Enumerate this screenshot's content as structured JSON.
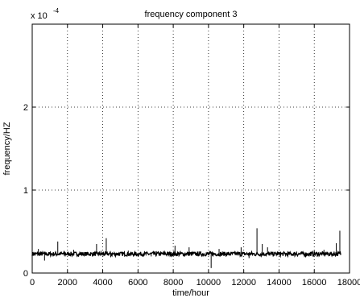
{
  "chart_data": {
    "type": "line",
    "title": "frequency component 3",
    "xlabel": "time/hour",
    "ylabel": "frequency/HZ",
    "y_multiplier": {
      "base": "x 10",
      "exponent": "-4"
    },
    "xlim": [
      0,
      18000
    ],
    "ylim": [
      0,
      3
    ],
    "xticks": [
      0,
      2000,
      4000,
      6000,
      8000,
      10000,
      12000,
      14000,
      16000,
      18000
    ],
    "xtick_labels": [
      "0",
      "2000",
      "4000",
      "6000",
      "8000",
      "10000",
      "12000",
      "14000",
      "16000",
      "18000"
    ],
    "yticks": [
      0,
      1,
      2
    ],
    "ytick_labels": [
      "0",
      "1",
      "2"
    ],
    "grid": true,
    "series": [
      {
        "color": "#000000",
        "baseline": 0.23,
        "x_range": [
          0,
          17500
        ],
        "spikes": [
          {
            "x": 350,
            "y": 0.29
          },
          {
            "x": 700,
            "y": 0.15
          },
          {
            "x": 1450,
            "y": 0.38
          },
          {
            "x": 2350,
            "y": 0.28
          },
          {
            "x": 2950,
            "y": 0.2
          },
          {
            "x": 3650,
            "y": 0.35
          },
          {
            "x": 4200,
            "y": 0.42
          },
          {
            "x": 4450,
            "y": 0.19
          },
          {
            "x": 5450,
            "y": 0.27
          },
          {
            "x": 6750,
            "y": 0.2
          },
          {
            "x": 8100,
            "y": 0.33
          },
          {
            "x": 8900,
            "y": 0.31
          },
          {
            "x": 10150,
            "y": 0.06
          },
          {
            "x": 10600,
            "y": 0.29
          },
          {
            "x": 11850,
            "y": 0.31
          },
          {
            "x": 12300,
            "y": 0.18
          },
          {
            "x": 12750,
            "y": 0.54
          },
          {
            "x": 13050,
            "y": 0.35
          },
          {
            "x": 13350,
            "y": 0.31
          },
          {
            "x": 14500,
            "y": 0.19
          },
          {
            "x": 15000,
            "y": 0.26
          },
          {
            "x": 16000,
            "y": 0.27
          },
          {
            "x": 16550,
            "y": 0.28
          },
          {
            "x": 17250,
            "y": 0.36
          },
          {
            "x": 17450,
            "y": 0.51
          }
        ]
      }
    ]
  }
}
